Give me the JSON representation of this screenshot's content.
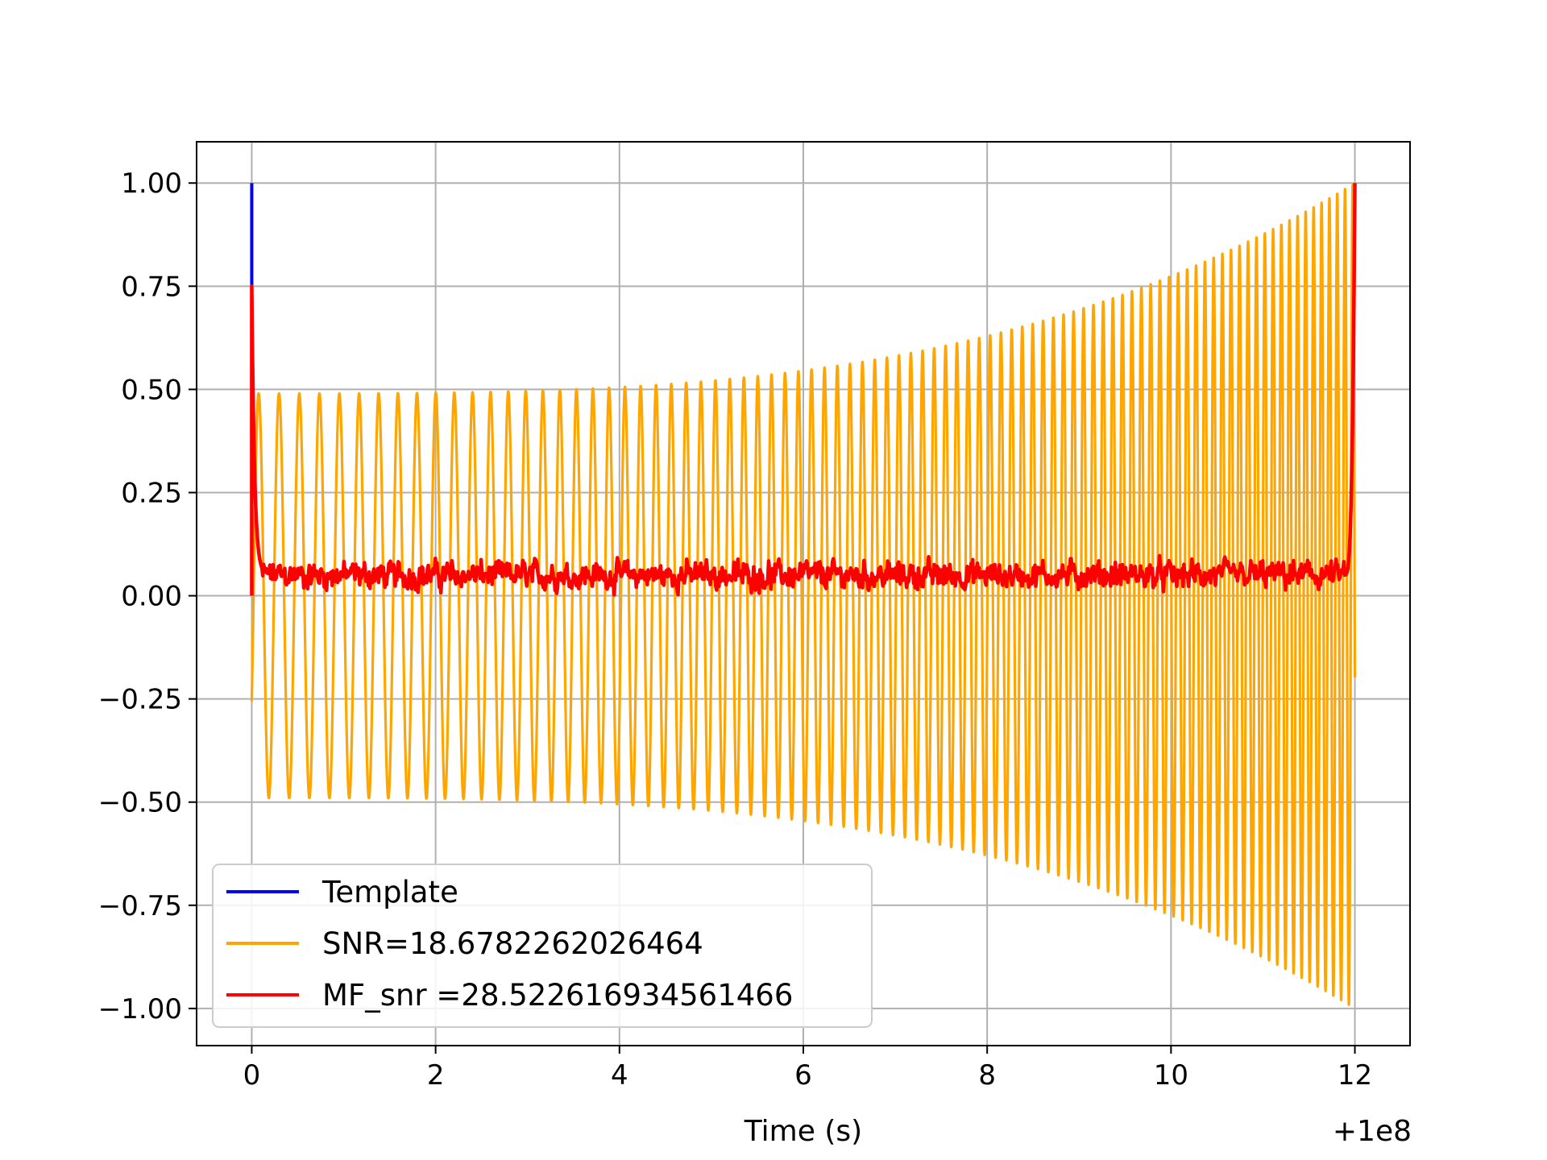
{
  "chart_data": {
    "type": "line",
    "title": "",
    "xlabel": "Time (s)",
    "ylabel": "",
    "x_offset_label": "+1e8",
    "xlim": [
      -0.6,
      12.6
    ],
    "ylim": [
      -1.09,
      1.1
    ],
    "grid": true,
    "xticks": [
      0,
      2,
      4,
      6,
      8,
      10,
      12
    ],
    "xtick_labels": [
      "0",
      "2",
      "4",
      "6",
      "8",
      "10",
      "12"
    ],
    "yticks": [
      1.0,
      0.75,
      0.5,
      0.25,
      0.0,
      -0.25,
      -0.5,
      -0.75,
      -1.0
    ],
    "ytick_labels": [
      "1.00",
      "0.75",
      "0.50",
      "0.25",
      "0.00",
      "−0.25",
      "−0.50",
      "−0.75",
      "−1.00"
    ],
    "legend_position": "lower-left",
    "series": [
      {
        "name": "Template",
        "color": "#0000ff",
        "description": "vertical spike at t=0 from 0 to 1.00",
        "x": [
          0,
          0
        ],
        "values": [
          0.0,
          1.0
        ]
      },
      {
        "name": "SNR=18.6782262026464",
        "color": "#ffa500",
        "description": "chirp oscillation, envelope grows from ~0.49 to 1.0, frequency increases from ~4.5 Hz to ~12 Hz",
        "t_start": 0,
        "t_end": 12,
        "envelope_start": 0.49,
        "envelope_end": 1.0,
        "freq_start": 4.5,
        "freq_end": 12
      },
      {
        "name": "MF_snr =28.522616934561466",
        "color": "#ff0000",
        "description": "noisy matched-filter SNR around 0.05, spikes to 0.75 at t=0 and 1.0 at t=12",
        "baseline": 0.05,
        "noise_amplitude": 0.045,
        "start_value": 0.75,
        "end_value": 1.0
      }
    ]
  }
}
